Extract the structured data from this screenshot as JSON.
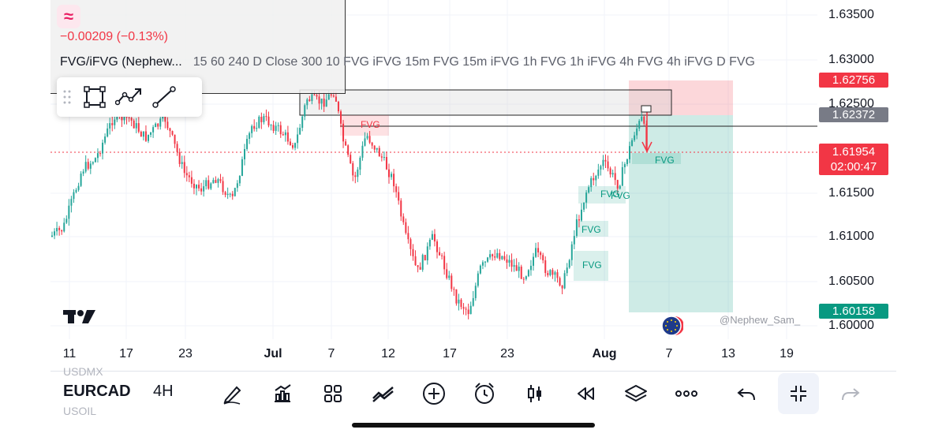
{
  "symbol": {
    "logo_glyph": "≈",
    "change": "−0.00209 (−0.13%)",
    "ticker": "EURCAD",
    "timeframe": "4H"
  },
  "indicator": {
    "name": "FVG/iFVG (Nephew...",
    "params": "15 60 240 D Close 300 10 FVG iFVG 15m FVG 15m iFVG 1h FVG 1h iFVG 4h FVG 4h iFVG D FVG"
  },
  "price_axis": {
    "labels": [
      "1.63500",
      "1.63000",
      "1.62500",
      "1.61500",
      "1.61000",
      "1.60500",
      "1.60000"
    ]
  },
  "price_tags": {
    "stop": {
      "value": "1.62756",
      "color": "#f23645"
    },
    "entry": {
      "value": "1.62372",
      "color": "#787b86"
    },
    "current": {
      "value": "1.61954",
      "countdown": "02:00:47",
      "color": "#f23645"
    },
    "target": {
      "value": "1.60158",
      "color": "#089981"
    }
  },
  "time_axis": {
    "labels": [
      "11",
      "17",
      "23",
      "Jul",
      "7",
      "12",
      "17",
      "23",
      "Aug",
      "7",
      "13",
      "19"
    ]
  },
  "fvg_labels": [
    "FVG",
    "FVG",
    "FVG",
    "FVG",
    "FVG",
    "FVG"
  ],
  "watermark": "@Nephew_Sam_",
  "ghost_symbols": [
    "USDMX",
    "USOIL"
  ],
  "toolbar_icons": [
    "pen-icon",
    "indicators-icon",
    "templates-icon",
    "compare-icon",
    "add-icon",
    "alert-icon",
    "candle-icon",
    "replay-icon",
    "layers-icon",
    "more-icon",
    "undo-icon",
    "collapse-icon",
    "redo-icon"
  ],
  "colors": {
    "up": "#089981",
    "down": "#f23645",
    "upSoft": "#26a69a"
  }
}
